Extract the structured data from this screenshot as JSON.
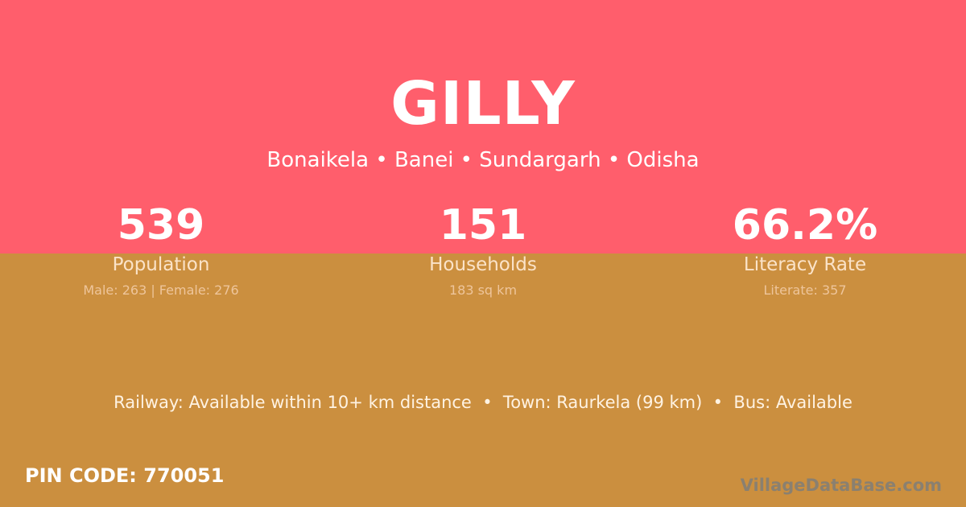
{
  "village": {
    "name": "GILLY",
    "location": "Bonaikela • Banei • Sundargarh • Odisha"
  },
  "stats": [
    {
      "value": "539",
      "label": "Population",
      "detail": "Male: 263 | Female: 276"
    },
    {
      "value": "151",
      "label": "Households",
      "detail": "183 sq km"
    },
    {
      "value": "66.2%",
      "label": "Literacy Rate",
      "detail": "Literate: 357"
    }
  ],
  "transport": "Railway: Available within 10+ km distance  •  Town: Raurkela (99 km)  •  Bus: Available",
  "pin_code": "PIN CODE: 770051",
  "logo_text": "VillageDataBase.com",
  "colors": {
    "top": "#ff5e6c",
    "bottom": "#cb8f3f"
  }
}
